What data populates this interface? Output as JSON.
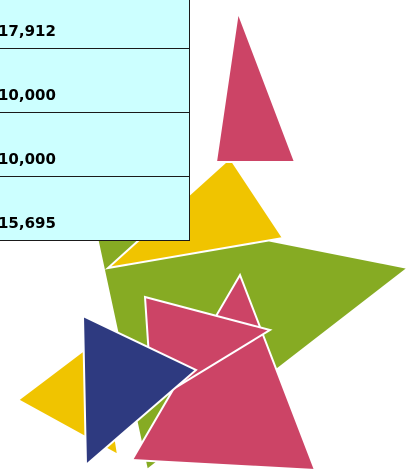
{
  "table": {
    "rows": [
      [
        "17,912"
      ],
      [
        "10,000"
      ],
      [
        "10,000"
      ],
      [
        "15,695"
      ]
    ]
  }
}
